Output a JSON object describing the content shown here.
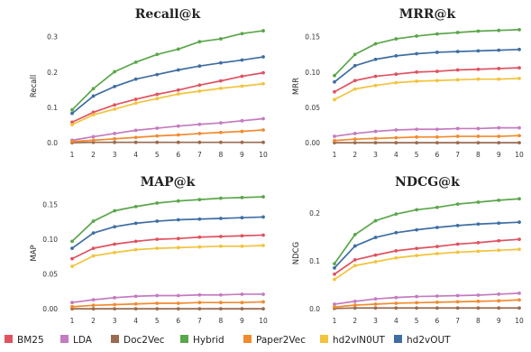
{
  "chart_data": [
    {
      "type": "line",
      "title": "Recall@k",
      "xlabel": "",
      "ylabel": "Recall",
      "x": [
        1,
        2,
        3,
        4,
        5,
        6,
        7,
        8,
        9,
        10
      ],
      "ylim": [
        -0.01,
        0.33
      ],
      "yticks": [
        "0.0",
        "0.1",
        "0.2",
        "0.3"
      ],
      "grid": false,
      "series": [
        {
          "name": "BM25",
          "color": "#e05260",
          "values": [
            0.058,
            0.086,
            0.107,
            0.123,
            0.137,
            0.149,
            0.163,
            0.175,
            0.188,
            0.198
          ]
        },
        {
          "name": "LDA",
          "color": "#c47bc0",
          "values": [
            0.007,
            0.017,
            0.026,
            0.035,
            0.041,
            0.047,
            0.052,
            0.056,
            0.062,
            0.068
          ]
        },
        {
          "name": "Doc2Vec",
          "color": "#9a6b4f",
          "values": [
            0.0,
            0.001,
            0.001,
            0.001,
            0.001,
            0.001,
            0.001,
            0.001,
            0.001,
            0.001
          ]
        },
        {
          "name": "Hybrid",
          "color": "#5aa64a",
          "values": [
            0.093,
            0.153,
            0.201,
            0.228,
            0.25,
            0.265,
            0.286,
            0.294,
            0.309,
            0.317
          ]
        },
        {
          "name": "Paper2Vec",
          "color": "#f28a2e",
          "values": [
            0.003,
            0.007,
            0.011,
            0.015,
            0.019,
            0.022,
            0.026,
            0.029,
            0.032,
            0.036
          ]
        },
        {
          "name": "hd2vIN0UT",
          "color": "#f2c33c",
          "values": [
            0.051,
            0.079,
            0.095,
            0.112,
            0.125,
            0.138,
            0.146,
            0.154,
            0.16,
            0.167
          ]
        },
        {
          "name": "hd2vOUT",
          "color": "#3f6ea3",
          "values": [
            0.083,
            0.132,
            0.159,
            0.18,
            0.193,
            0.206,
            0.217,
            0.226,
            0.234,
            0.243
          ]
        }
      ]
    },
    {
      "type": "line",
      "title": "MRR@k",
      "xlabel": "",
      "ylabel": "MRR",
      "x": [
        1,
        2,
        3,
        4,
        5,
        6,
        7,
        8,
        9,
        10
      ],
      "ylim": [
        -0.005,
        0.165
      ],
      "yticks": [
        "0.00",
        "0.05",
        "0.10",
        "0.15"
      ],
      "grid": false,
      "series": [
        {
          "name": "BM25",
          "color": "#e05260",
          "values": [
            0.072,
            0.088,
            0.094,
            0.097,
            0.1,
            0.101,
            0.103,
            0.104,
            0.105,
            0.106
          ]
        },
        {
          "name": "LDA",
          "color": "#c47bc0",
          "values": [
            0.009,
            0.013,
            0.016,
            0.018,
            0.019,
            0.019,
            0.02,
            0.02,
            0.021,
            0.021
          ]
        },
        {
          "name": "Doc2Vec",
          "color": "#9a6b4f",
          "values": [
            0.0,
            0.0,
            0.0,
            0.0,
            0.0,
            0.0,
            0.0,
            0.0,
            0.0,
            0.0
          ]
        },
        {
          "name": "Hybrid",
          "color": "#5aa64a",
          "values": [
            0.095,
            0.125,
            0.14,
            0.147,
            0.151,
            0.154,
            0.156,
            0.158,
            0.159,
            0.16
          ]
        },
        {
          "name": "Paper2Vec",
          "color": "#f28a2e",
          "values": [
            0.003,
            0.005,
            0.006,
            0.007,
            0.008,
            0.008,
            0.009,
            0.009,
            0.009,
            0.01
          ]
        },
        {
          "name": "hd2vIN0UT",
          "color": "#f2c33c",
          "values": [
            0.061,
            0.076,
            0.081,
            0.085,
            0.087,
            0.088,
            0.089,
            0.09,
            0.09,
            0.091
          ]
        },
        {
          "name": "hd2vOUT",
          "color": "#3f6ea3",
          "values": [
            0.086,
            0.109,
            0.118,
            0.123,
            0.126,
            0.128,
            0.129,
            0.13,
            0.131,
            0.132
          ]
        }
      ]
    },
    {
      "type": "line",
      "title": "MAP@k",
      "xlabel": "",
      "ylabel": "MAP",
      "x": [
        1,
        2,
        3,
        4,
        5,
        6,
        7,
        8,
        9,
        10
      ],
      "ylim": [
        -0.005,
        0.165
      ],
      "yticks": [
        "0.00",
        "0.05",
        "0.10",
        "0.15"
      ],
      "grid": false,
      "series": [
        {
          "name": "BM25",
          "color": "#e05260",
          "values": [
            0.072,
            0.087,
            0.093,
            0.097,
            0.1,
            0.101,
            0.103,
            0.104,
            0.105,
            0.106
          ]
        },
        {
          "name": "LDA",
          "color": "#c47bc0",
          "values": [
            0.009,
            0.013,
            0.016,
            0.018,
            0.019,
            0.019,
            0.02,
            0.02,
            0.021,
            0.021
          ]
        },
        {
          "name": "Doc2Vec",
          "color": "#9a6b4f",
          "values": [
            0.0,
            0.0,
            0.0,
            0.0,
            0.0,
            0.0,
            0.0,
            0.0,
            0.0,
            0.0
          ]
        },
        {
          "name": "Hybrid",
          "color": "#5aa64a",
          "values": [
            0.097,
            0.126,
            0.141,
            0.147,
            0.152,
            0.155,
            0.157,
            0.159,
            0.16,
            0.161
          ]
        },
        {
          "name": "Paper2Vec",
          "color": "#f28a2e",
          "values": [
            0.003,
            0.005,
            0.006,
            0.007,
            0.008,
            0.008,
            0.009,
            0.009,
            0.009,
            0.01
          ]
        },
        {
          "name": "hd2vIN0UT",
          "color": "#f2c33c",
          "values": [
            0.061,
            0.076,
            0.081,
            0.085,
            0.087,
            0.088,
            0.089,
            0.09,
            0.09,
            0.091
          ]
        },
        {
          "name": "hd2vOUT",
          "color": "#3f6ea3",
          "values": [
            0.087,
            0.109,
            0.118,
            0.123,
            0.126,
            0.128,
            0.129,
            0.13,
            0.131,
            0.132
          ]
        }
      ]
    },
    {
      "type": "line",
      "title": "NDCG@k",
      "xlabel": "",
      "ylabel": "NDCG",
      "x": [
        1,
        2,
        3,
        4,
        5,
        6,
        7,
        8,
        9,
        10
      ],
      "ylim": [
        -0.008,
        0.24
      ],
      "yticks": [
        "0.0",
        "0.1",
        "0.2"
      ],
      "grid": false,
      "series": [
        {
          "name": "BM25",
          "color": "#e05260",
          "values": [
            0.072,
            0.102,
            0.112,
            0.121,
            0.126,
            0.13,
            0.135,
            0.138,
            0.142,
            0.145
          ]
        },
        {
          "name": "LDA",
          "color": "#c47bc0",
          "values": [
            0.009,
            0.015,
            0.02,
            0.023,
            0.025,
            0.026,
            0.027,
            0.028,
            0.03,
            0.032
          ]
        },
        {
          "name": "Doc2Vec",
          "color": "#9a6b4f",
          "values": [
            0.0,
            0.001,
            0.001,
            0.001,
            0.001,
            0.001,
            0.001,
            0.001,
            0.001,
            0.001
          ]
        },
        {
          "name": "Hybrid",
          "color": "#5aa64a",
          "values": [
            0.094,
            0.155,
            0.184,
            0.198,
            0.207,
            0.212,
            0.219,
            0.223,
            0.227,
            0.23
          ]
        },
        {
          "name": "Paper2Vec",
          "color": "#f28a2e",
          "values": [
            0.003,
            0.007,
            0.009,
            0.011,
            0.012,
            0.013,
            0.014,
            0.015,
            0.016,
            0.018
          ]
        },
        {
          "name": "hd2vIN0UT",
          "color": "#f2c33c",
          "values": [
            0.061,
            0.09,
            0.098,
            0.106,
            0.111,
            0.115,
            0.118,
            0.12,
            0.122,
            0.124
          ]
        },
        {
          "name": "hd2vOUT",
          "color": "#3f6ea3",
          "values": [
            0.085,
            0.131,
            0.149,
            0.159,
            0.165,
            0.17,
            0.174,
            0.177,
            0.179,
            0.181
          ]
        }
      ]
    }
  ],
  "legend": {
    "position": "bottom",
    "items": [
      {
        "label": "BM25",
        "color": "#e05260"
      },
      {
        "label": "LDA",
        "color": "#c47bc0"
      },
      {
        "label": "Doc2Vec",
        "color": "#9a6b4f"
      },
      {
        "label": "Hybrid",
        "color": "#5aa64a"
      },
      {
        "label": "Paper2Vec",
        "color": "#f28a2e"
      },
      {
        "label": "hd2vIN0UT",
        "color": "#f2c33c"
      },
      {
        "label": "hd2vOUT",
        "color": "#3f6ea3"
      }
    ]
  }
}
